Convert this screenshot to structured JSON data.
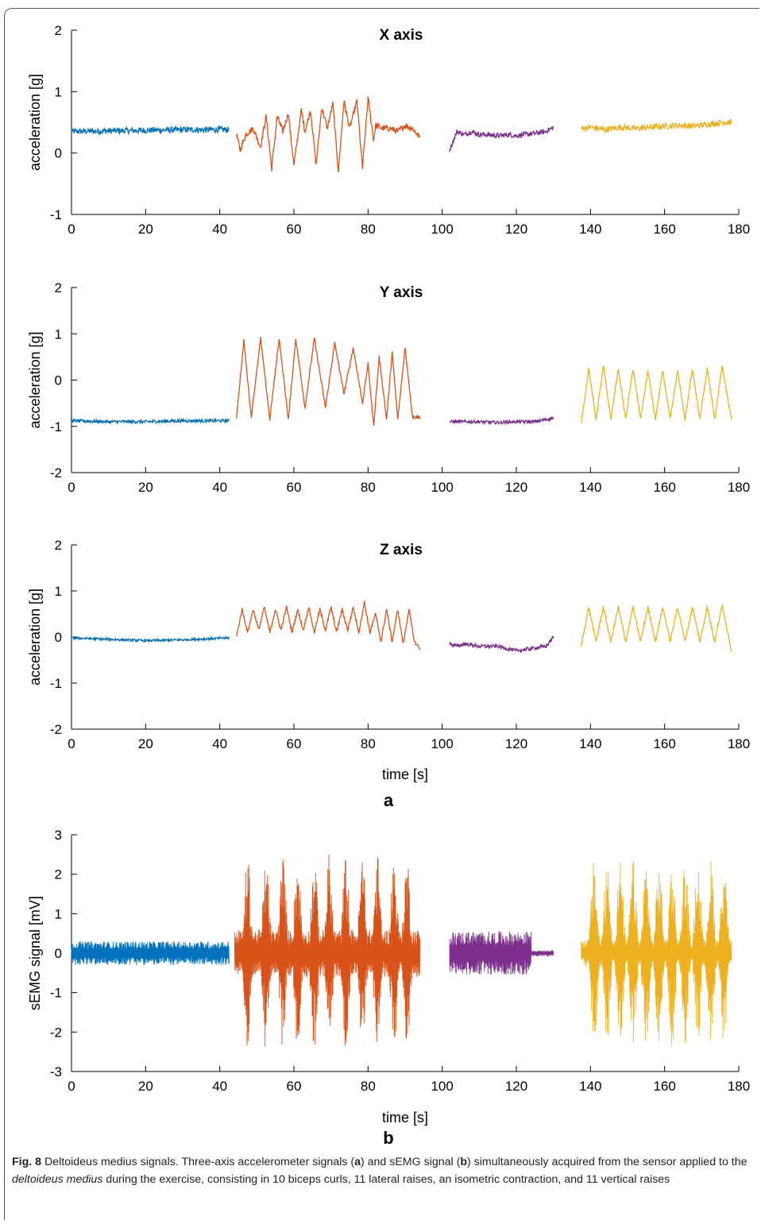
{
  "chart_data": [
    {
      "type": "line",
      "title": "X axis",
      "xlabel": "",
      "ylabel": "acceleration [g]",
      "xlim": [
        0,
        180
      ],
      "ylim": [
        -1,
        2
      ],
      "xticks": [
        0,
        20,
        40,
        60,
        80,
        100,
        120,
        140,
        160,
        180
      ],
      "yticks": [
        -1,
        0,
        1,
        2
      ],
      "series": [
        {
          "color": "#0072BD",
          "x": [
            0,
            10,
            20,
            30,
            42.5
          ],
          "y": [
            0.35,
            0.36,
            0.37,
            0.38,
            0.38
          ],
          "noise": 0.05
        },
        {
          "color": "#D95319",
          "x": [
            44.5,
            45.5,
            47,
            49,
            51,
            52.5,
            54,
            55.5,
            57,
            58.5,
            60,
            62,
            63,
            64.5,
            66,
            67.5,
            69,
            70.5,
            72,
            73.5,
            75,
            77,
            78.5,
            80,
            81.5,
            82,
            84,
            86,
            88,
            90,
            92,
            94
          ],
          "y": [
            0.3,
            0.05,
            0.3,
            0.4,
            0.1,
            0.6,
            -0.25,
            0.6,
            0.35,
            0.65,
            -0.2,
            0.7,
            0.35,
            0.7,
            -0.2,
            0.75,
            0.4,
            0.8,
            -0.3,
            0.85,
            0.4,
            0.85,
            -0.25,
            0.9,
            0.2,
            0.45,
            0.4,
            0.4,
            0.35,
            0.45,
            0.4,
            0.25
          ],
          "noise": 0.05
        },
        {
          "color": "#7E2F8E",
          "x": [
            102,
            103,
            104,
            106,
            108,
            110,
            112,
            115,
            118,
            120,
            122,
            125,
            128,
            130
          ],
          "y": [
            0.05,
            0.2,
            0.35,
            0.3,
            0.35,
            0.3,
            0.3,
            0.28,
            0.3,
            0.28,
            0.3,
            0.32,
            0.35,
            0.42
          ],
          "noise": 0.04
        },
        {
          "color": "#EDB120",
          "x": [
            137.5,
            140,
            144,
            148,
            152,
            156,
            160,
            164,
            168,
            172,
            176,
            178
          ],
          "y": [
            0.4,
            0.42,
            0.38,
            0.42,
            0.4,
            0.42,
            0.44,
            0.45,
            0.44,
            0.47,
            0.5,
            0.5
          ],
          "noise": 0.05
        }
      ]
    },
    {
      "type": "line",
      "title": "Y axis",
      "xlabel": "",
      "ylabel": "acceleration [g]",
      "xlim": [
        0,
        180
      ],
      "ylim": [
        -2,
        2
      ],
      "xticks": [
        0,
        20,
        40,
        60,
        80,
        100,
        120,
        140,
        160,
        180
      ],
      "yticks": [
        -2,
        -1,
        0,
        1,
        2
      ],
      "series": [
        {
          "color": "#0072BD",
          "x": [
            0,
            10,
            20,
            30,
            42.5
          ],
          "y": [
            -0.88,
            -0.9,
            -0.9,
            -0.88,
            -0.88
          ],
          "noise": 0.035
        },
        {
          "color": "#D95319",
          "x": [
            44.5,
            46.5,
            48.5,
            51,
            53.5,
            56,
            58.5,
            60.5,
            63,
            65.5,
            68.5,
            71,
            73.5,
            76,
            78.5,
            80,
            81.5,
            83,
            85,
            86.5,
            88,
            90,
            92,
            94
          ],
          "y": [
            -0.8,
            0.85,
            -0.8,
            0.9,
            -0.85,
            0.9,
            -0.85,
            0.9,
            -0.6,
            0.9,
            -0.6,
            0.8,
            -0.3,
            0.7,
            -0.5,
            0.35,
            -1.0,
            0.5,
            -0.85,
            0.6,
            -0.85,
            0.7,
            -0.8,
            -0.8
          ],
          "noise": 0.04
        },
        {
          "color": "#7E2F8E",
          "x": [
            102,
            110,
            115,
            120,
            125,
            130
          ],
          "y": [
            -0.9,
            -0.9,
            -0.92,
            -0.9,
            -0.9,
            -0.82
          ],
          "noise": 0.035
        },
        {
          "color": "#EDB120",
          "x": [
            137.5,
            139.5,
            141.5,
            143.5,
            145.5,
            147.5,
            149.5,
            151.5,
            153.5,
            155.5,
            157.5,
            159.5,
            161.5,
            163.5,
            165.5,
            167.5,
            169.5,
            171.5,
            173.5,
            175.5,
            178
          ],
          "y": [
            -0.95,
            0.25,
            -0.85,
            0.3,
            -0.85,
            0.25,
            -0.85,
            0.25,
            -0.85,
            0.2,
            -0.85,
            0.2,
            -0.85,
            0.2,
            -0.85,
            0.25,
            -0.85,
            0.25,
            -0.85,
            0.3,
            -0.85
          ],
          "noise": 0.04
        }
      ]
    },
    {
      "type": "line",
      "title": "Z axis",
      "xlabel": "time [s]",
      "ylabel": "acceleration [g]",
      "xlim": [
        0,
        180
      ],
      "ylim": [
        -2,
        2
      ],
      "xticks": [
        0,
        20,
        40,
        60,
        80,
        100,
        120,
        140,
        160,
        180
      ],
      "yticks": [
        -2,
        -1,
        0,
        1,
        2
      ],
      "series": [
        {
          "color": "#0072BD",
          "x": [
            0,
            10,
            20,
            30,
            42.5
          ],
          "y": [
            -0.02,
            -0.05,
            -0.08,
            -0.06,
            -0.02
          ],
          "noise": 0.025
        },
        {
          "color": "#D95319",
          "x": [
            44.5,
            46,
            47.5,
            49,
            50.5,
            52,
            53.5,
            55,
            56.5,
            58,
            59.5,
            61,
            62.5,
            64,
            65.5,
            67,
            68.5,
            70,
            71.5,
            73,
            74.5,
            76,
            77.5,
            79,
            80.5,
            82,
            83.5,
            85,
            86.5,
            88,
            89.5,
            91,
            92.5,
            94
          ],
          "y": [
            0.0,
            0.6,
            0.1,
            0.6,
            0.15,
            0.65,
            0.1,
            0.6,
            0.15,
            0.65,
            0.1,
            0.6,
            0.15,
            0.65,
            0.1,
            0.6,
            0.15,
            0.65,
            0.1,
            0.6,
            0.15,
            0.65,
            0.1,
            0.75,
            0.1,
            0.5,
            -0.1,
            0.6,
            -0.1,
            0.6,
            -0.15,
            0.6,
            -0.1,
            -0.25
          ],
          "noise": 0.04
        },
        {
          "color": "#7E2F8E",
          "x": [
            102,
            104,
            106,
            110,
            115,
            120,
            124,
            128,
            130
          ],
          "y": [
            -0.15,
            -0.2,
            -0.15,
            -0.2,
            -0.2,
            -0.3,
            -0.25,
            -0.2,
            0.0
          ],
          "noise": 0.04
        },
        {
          "color": "#EDB120",
          "x": [
            137.5,
            139.5,
            141.5,
            143.5,
            145.5,
            147.5,
            149.5,
            151.5,
            153.5,
            155.5,
            157.5,
            159.5,
            161.5,
            163.5,
            165.5,
            167.5,
            169.5,
            171.5,
            173.5,
            175.5,
            178
          ],
          "y": [
            -0.2,
            0.65,
            -0.1,
            0.65,
            -0.1,
            0.65,
            -0.1,
            0.65,
            -0.1,
            0.65,
            -0.1,
            0.65,
            -0.1,
            0.65,
            -0.1,
            0.65,
            -0.1,
            0.65,
            -0.1,
            0.7,
            -0.3
          ],
          "noise": 0.04
        }
      ]
    },
    {
      "type": "line",
      "title": "",
      "xlabel": "time [s]",
      "ylabel": "sEMG signal [mV]",
      "xlim": [
        0,
        180
      ],
      "ylim": [
        -3,
        3
      ],
      "xticks": [
        0,
        20,
        40,
        60,
        80,
        100,
        120,
        140,
        160,
        180
      ],
      "yticks": [
        -3,
        -2,
        -1,
        0,
        1,
        2,
        3
      ],
      "series": [
        {
          "color": "#0072BD",
          "segments": [
            [
              0,
              42.5,
              0.3
            ]
          ],
          "bursts": []
        },
        {
          "color": "#D95319",
          "segments": [
            [
              44,
              94,
              0.6
            ]
          ],
          "bursts": [
            47.5,
            52.5,
            57,
            61,
            65.5,
            69.5,
            74,
            78.5,
            82.5,
            87,
            90.5
          ],
          "burst_amp": 2.55
        },
        {
          "color": "#7E2F8E",
          "segments": [
            [
              102,
              124,
              0.55
            ],
            [
              124,
              130,
              0.08
            ]
          ],
          "bursts": []
        },
        {
          "color": "#EDB120",
          "segments": [
            [
              137.5,
              178,
              0.35
            ]
          ],
          "bursts": [
            141,
            144.5,
            148,
            151.5,
            155,
            158.5,
            162,
            165.5,
            169,
            172.5,
            176
          ],
          "burst_amp": 2.4
        }
      ]
    }
  ],
  "panel_labels": {
    "a": "a",
    "b": "b"
  },
  "caption": {
    "label": "Fig. 8",
    "part1": "  Deltoideus medius signals. Three-axis accelerometer signals (",
    "a": "a",
    "part2": ") and sEMG signal (",
    "b": "b",
    "part3": ") simultaneously acquired from the sensor applied to the ",
    "italic": "deltoideus medius",
    "part4": " during the exercise, consisting in 10 biceps curls, 11 lateral raises, an isometric contraction, and 11 vertical raises"
  }
}
